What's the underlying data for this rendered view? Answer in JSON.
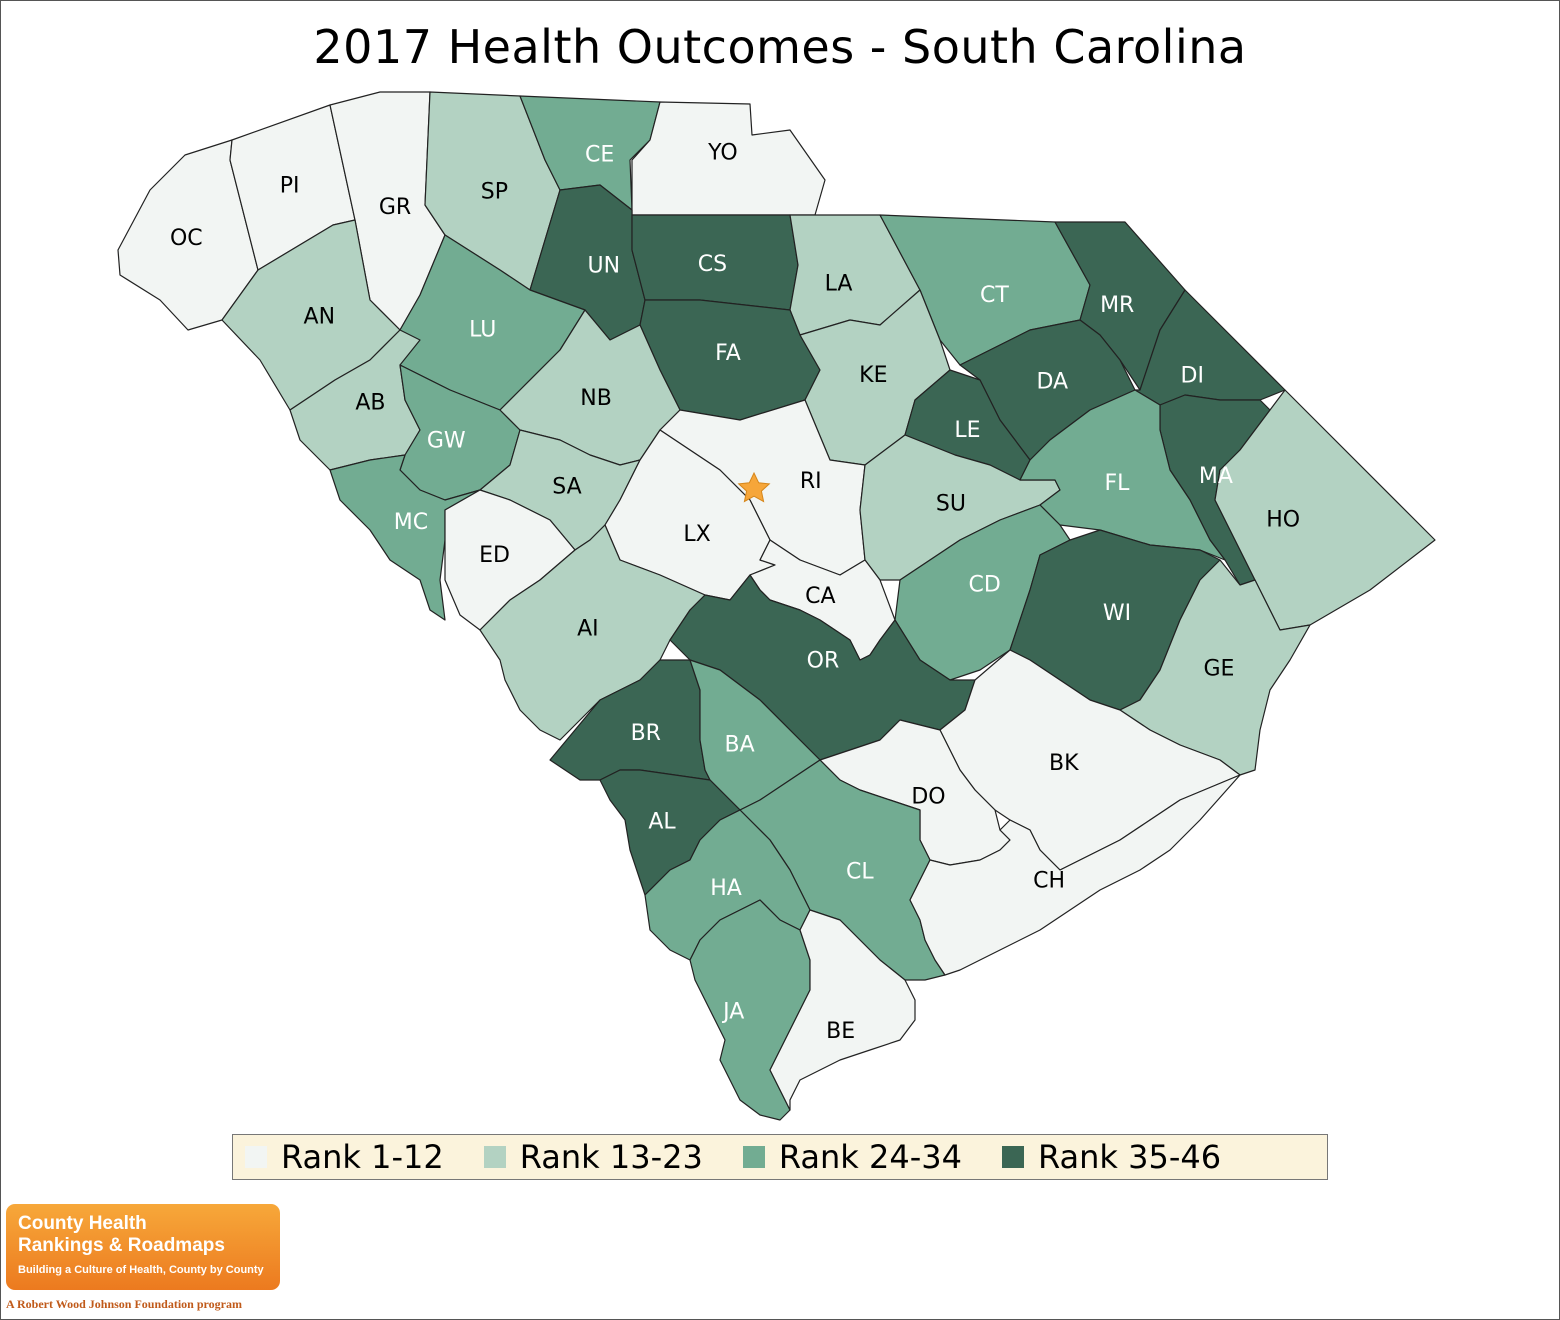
{
  "title": "2017 Health Outcomes - South Carolina",
  "legend": [
    {
      "label": "Rank 1-12",
      "color": "#f2f5f3"
    },
    {
      "label": "Rank 13-23",
      "color": "#b3d2c2"
    },
    {
      "label": "Rank 24-34",
      "color": "#72ac92"
    },
    {
      "label": "Rank 35-46",
      "color": "#3b6654"
    }
  ],
  "capital_marker": "star-icon",
  "counties": [
    {
      "code": "OC",
      "tier": 0
    },
    {
      "code": "PI",
      "tier": 0
    },
    {
      "code": "GR",
      "tier": 0
    },
    {
      "code": "SP",
      "tier": 1
    },
    {
      "code": "CE",
      "tier": 2
    },
    {
      "code": "YO",
      "tier": 0
    },
    {
      "code": "UN",
      "tier": 3
    },
    {
      "code": "CS",
      "tier": 3
    },
    {
      "code": "LA",
      "tier": 1
    },
    {
      "code": "CT",
      "tier": 2
    },
    {
      "code": "MR",
      "tier": 3
    },
    {
      "code": "AN",
      "tier": 1
    },
    {
      "code": "LU",
      "tier": 2
    },
    {
      "code": "FA",
      "tier": 3
    },
    {
      "code": "KE",
      "tier": 1
    },
    {
      "code": "DA",
      "tier": 3
    },
    {
      "code": "DI",
      "tier": 3
    },
    {
      "code": "AB",
      "tier": 1
    },
    {
      "code": "GW",
      "tier": 2
    },
    {
      "code": "NB",
      "tier": 1
    },
    {
      "code": "LE",
      "tier": 3
    },
    {
      "code": "MA",
      "tier": 3
    },
    {
      "code": "MC",
      "tier": 2
    },
    {
      "code": "SA",
      "tier": 1
    },
    {
      "code": "RI",
      "tier": 0
    },
    {
      "code": "LX",
      "tier": 0
    },
    {
      "code": "SU",
      "tier": 1
    },
    {
      "code": "FL",
      "tier": 2
    },
    {
      "code": "HO",
      "tier": 1
    },
    {
      "code": "ED",
      "tier": 0
    },
    {
      "code": "CA",
      "tier": 0
    },
    {
      "code": "CD",
      "tier": 2
    },
    {
      "code": "WI",
      "tier": 3
    },
    {
      "code": "AI",
      "tier": 1
    },
    {
      "code": "OR",
      "tier": 3
    },
    {
      "code": "GE",
      "tier": 1
    },
    {
      "code": "BR",
      "tier": 3
    },
    {
      "code": "BA",
      "tier": 2
    },
    {
      "code": "BK",
      "tier": 0
    },
    {
      "code": "DO",
      "tier": 0
    },
    {
      "code": "AL",
      "tier": 3
    },
    {
      "code": "CL",
      "tier": 2
    },
    {
      "code": "HA",
      "tier": 2
    },
    {
      "code": "CH",
      "tier": 0
    },
    {
      "code": "JA",
      "tier": 2
    },
    {
      "code": "BE",
      "tier": 0
    }
  ],
  "logo": {
    "line1": "County Health",
    "line2": "Rankings & Roadmaps",
    "tagline": "Building a Culture of Health, County by County",
    "credit": "A Robert Wood Johnson Foundation program"
  }
}
